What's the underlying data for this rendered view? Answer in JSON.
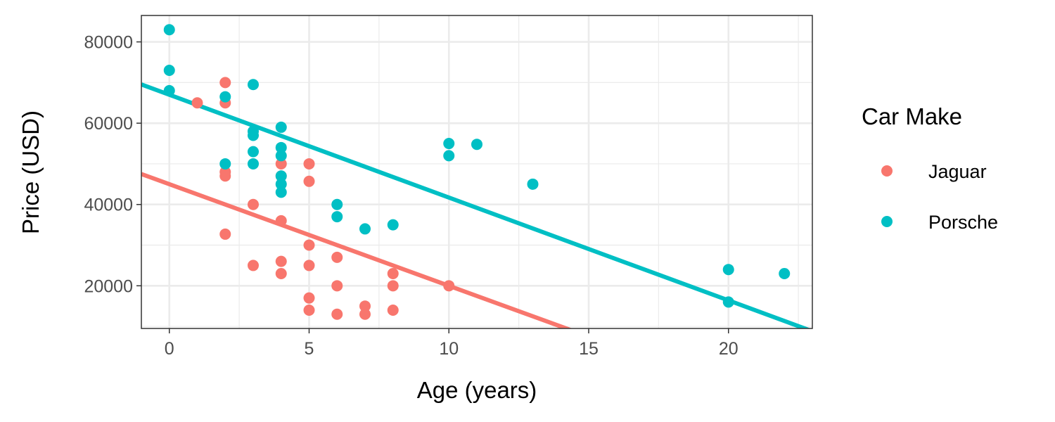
{
  "chart_data": {
    "type": "scatter",
    "xlabel": "Age (years)",
    "ylabel": "Price (USD)",
    "xlim": [
      -1.0,
      23.0
    ],
    "ylim": [
      9500,
      86500
    ],
    "x_ticks": [
      0,
      5,
      10,
      15,
      20
    ],
    "y_ticks": [
      20000,
      40000,
      60000,
      80000
    ],
    "grid": true,
    "legend": {
      "title": "Car Make",
      "position": "right"
    },
    "series": [
      {
        "name": "Jaguar",
        "color": "#F8766D",
        "points": [
          [
            1,
            65000
          ],
          [
            2,
            70000
          ],
          [
            2,
            65000
          ],
          [
            2,
            48000
          ],
          [
            2,
            47000
          ],
          [
            2,
            32700
          ],
          [
            3,
            40000
          ],
          [
            3,
            25000
          ],
          [
            4,
            50000
          ],
          [
            4,
            47000
          ],
          [
            4,
            36000
          ],
          [
            4,
            26000
          ],
          [
            4,
            23000
          ],
          [
            5,
            50000
          ],
          [
            5,
            45700
          ],
          [
            5,
            30000
          ],
          [
            5,
            25000
          ],
          [
            5,
            17000
          ],
          [
            5,
            14000
          ],
          [
            6,
            27000
          ],
          [
            6,
            20000
          ],
          [
            6,
            13000
          ],
          [
            7,
            15000
          ],
          [
            7,
            13000
          ],
          [
            8,
            23000
          ],
          [
            8,
            20000
          ],
          [
            8,
            14000
          ],
          [
            10,
            20000
          ]
        ],
        "fit": {
          "intercept": 45000,
          "slope": -2500
        }
      },
      {
        "name": "Porsche",
        "color": "#00BFC4",
        "points": [
          [
            0,
            83000
          ],
          [
            0,
            73000
          ],
          [
            0,
            68000
          ],
          [
            2,
            66500
          ],
          [
            2,
            50000
          ],
          [
            3,
            69500
          ],
          [
            3,
            58000
          ],
          [
            3,
            57000
          ],
          [
            3,
            53000
          ],
          [
            3,
            50000
          ],
          [
            4,
            59000
          ],
          [
            4,
            54000
          ],
          [
            4,
            52000
          ],
          [
            4,
            47000
          ],
          [
            4,
            45000
          ],
          [
            4,
            43000
          ],
          [
            6,
            40000
          ],
          [
            6,
            37000
          ],
          [
            7,
            34000
          ],
          [
            8,
            35000
          ],
          [
            10,
            55000
          ],
          [
            10,
            52000
          ],
          [
            11,
            54800
          ],
          [
            13,
            45000
          ],
          [
            20,
            24000
          ],
          [
            20,
            16000
          ],
          [
            22,
            23000
          ]
        ],
        "fit": {
          "intercept": 67000,
          "slope": -2530
        }
      }
    ]
  }
}
